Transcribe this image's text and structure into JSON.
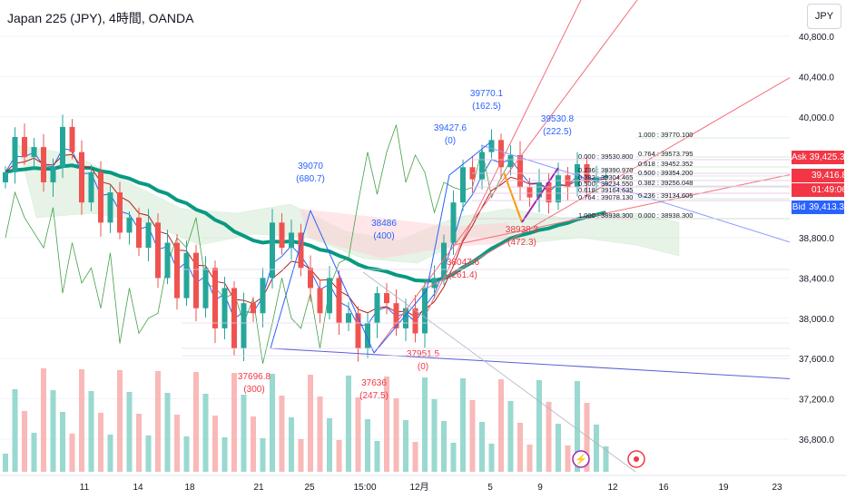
{
  "header": {
    "title": "Japan 225 (JPY), 4時間, OANDA"
  },
  "currency_button": "JPY",
  "price_tags": {
    "ask_label": "Ask",
    "ask_value": "39,425.3",
    "last_value": "39,416.8",
    "countdown": "01:49:06",
    "bid_label": "Bid",
    "bid_value": "39,413.3"
  },
  "colors": {
    "up": "#26a69a",
    "down": "#ef5350",
    "ema": "#089981",
    "fib_blue": "#2962ff",
    "fib_red": "#f23645"
  },
  "chart_data": {
    "type": "candlestick",
    "y_axis": {
      "ticks": [
        36800,
        37200,
        37600,
        38000,
        38400,
        38800,
        40000,
        40400,
        40800
      ],
      "tick_labels": [
        "36,800.0",
        "37,200.0",
        "37,600.0",
        "38,000.0",
        "38,400.0",
        "38,800.0",
        "40,000.0",
        "40,400.0",
        "40,800.0"
      ],
      "range": [
        36450,
        41000
      ]
    },
    "x_axis": {
      "tick_labels": [
        "11",
        "14",
        "18",
        "21",
        "25",
        "15:00",
        "12月",
        "5",
        "9",
        "12",
        "16",
        "19",
        "23"
      ]
    },
    "close_series": [
      39450,
      39800,
      39600,
      39700,
      39350,
      39500,
      39900,
      39650,
      39150,
      39450,
      38950,
      39250,
      38850,
      39000,
      38700,
      38950,
      38400,
      38750,
      38200,
      38650,
      38100,
      38500,
      37900,
      38300,
      37700,
      38150,
      38050,
      38400,
      38950,
      38700,
      38850,
      38500,
      38300,
      38050,
      38400,
      37950,
      38050,
      37700,
      37950,
      38250,
      38150,
      37900,
      38100,
      37850,
      38300,
      38400,
      38750,
      39150,
      39500,
      39380,
      39650,
      39770,
      39500,
      39620,
      39300,
      39200,
      39350,
      39150,
      39420,
      39300,
      39530,
      39350,
      39400,
      39416
    ],
    "ema_label": "EMA",
    "highs_lows": [
      {
        "price": "37696.8",
        "note": "(300)"
      },
      {
        "price": "39070",
        "note": "(680.7)"
      },
      {
        "price": "37636",
        "note": "(247.5)"
      },
      {
        "price": "38486",
        "note": "(400)"
      },
      {
        "price": "37951.5",
        "note": "(0)"
      },
      {
        "price": "38047.6",
        "note": "(261.4)"
      },
      {
        "price": "39427.6",
        "note": "(0)"
      },
      {
        "price": "39770.1",
        "note": "(162.5)"
      },
      {
        "price": "38938.3",
        "note": "(472.3)"
      },
      {
        "price": "39530.8",
        "note": "(222.5)"
      }
    ],
    "fib_levels_a": [
      "0.000 : 39530.800",
      "0.236 : 39390.970",
      "0.382 : 39304.465",
      "0.500 : 39234.550",
      "0.618 : 39164.635",
      "0.764 : 39078.130",
      "1.000 : 38938.300"
    ],
    "fib_levels_b": [
      "1.000 : 39770.100",
      "0.764 : 39573.795",
      "0.618 : 39452.352",
      "0.500 : 39354.200",
      "0.382 : 39256.048",
      "0.236 : 39134.605",
      "0.000 : 38938.300"
    ]
  }
}
